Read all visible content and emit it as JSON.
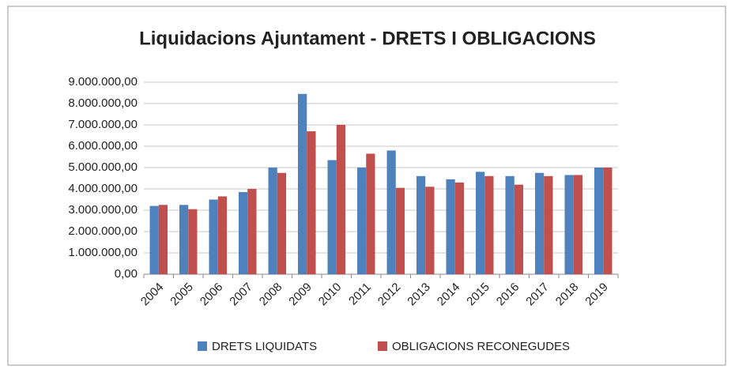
{
  "chart_data": {
    "type": "bar",
    "title": "Liquidacions Ajuntament - DRETS I OBLIGACIONS",
    "categories": [
      "2004",
      "2005",
      "2006",
      "2007",
      "2008",
      "2009",
      "2010",
      "2011",
      "2012",
      "2013",
      "2014",
      "2015",
      "2016",
      "2017",
      "2018",
      "2019"
    ],
    "series": [
      {
        "name": "DRETS LIQUIDATS",
        "color": "#4f81bd",
        "values": [
          3200000,
          3250000,
          3500000,
          3850000,
          5000000,
          8450000,
          5350000,
          5000000,
          5800000,
          4600000,
          4450000,
          4800000,
          4600000,
          4750000,
          4650000,
          5000000
        ]
      },
      {
        "name": "OBLIGACIONS RECONEGUDES",
        "color": "#c0504d",
        "values": [
          3250000,
          3050000,
          3650000,
          4000000,
          4750000,
          6700000,
          7000000,
          5650000,
          4050000,
          4100000,
          4300000,
          4600000,
          4200000,
          4600000,
          4650000,
          5000000
        ]
      }
    ],
    "ylim": [
      0,
      9000000
    ],
    "yticks": [
      {
        "value": 0,
        "label": "0,00"
      },
      {
        "value": 1000000,
        "label": "1.000.000,00"
      },
      {
        "value": 2000000,
        "label": "2.000.000,00"
      },
      {
        "value": 3000000,
        "label": "3.000.000,00"
      },
      {
        "value": 4000000,
        "label": "4.000.000,00"
      },
      {
        "value": 5000000,
        "label": "5.000.000,00"
      },
      {
        "value": 6000000,
        "label": "6.000.000,00"
      },
      {
        "value": 7000000,
        "label": "7.000.000,00"
      },
      {
        "value": 8000000,
        "label": "8.000.000,00"
      },
      {
        "value": 9000000,
        "label": "9.000.000,00"
      }
    ],
    "grid": true,
    "legend": "bottom"
  }
}
